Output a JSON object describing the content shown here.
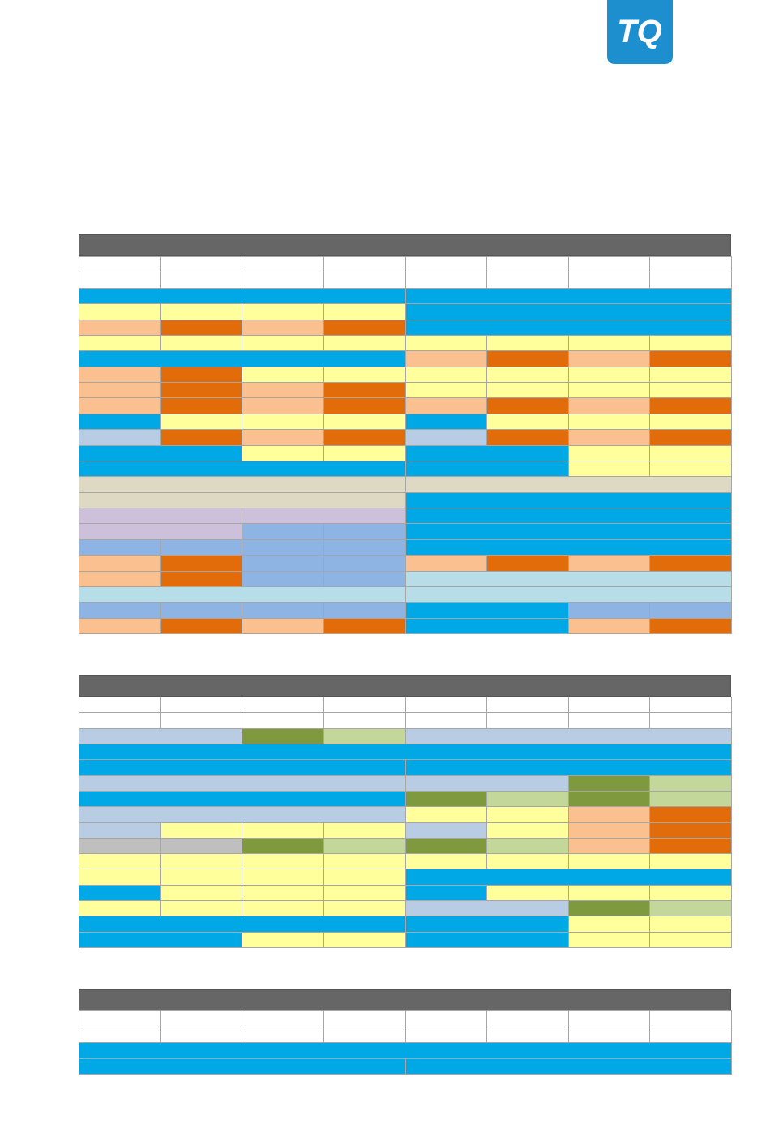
{
  "logo": {
    "text": "TQ"
  }
}
